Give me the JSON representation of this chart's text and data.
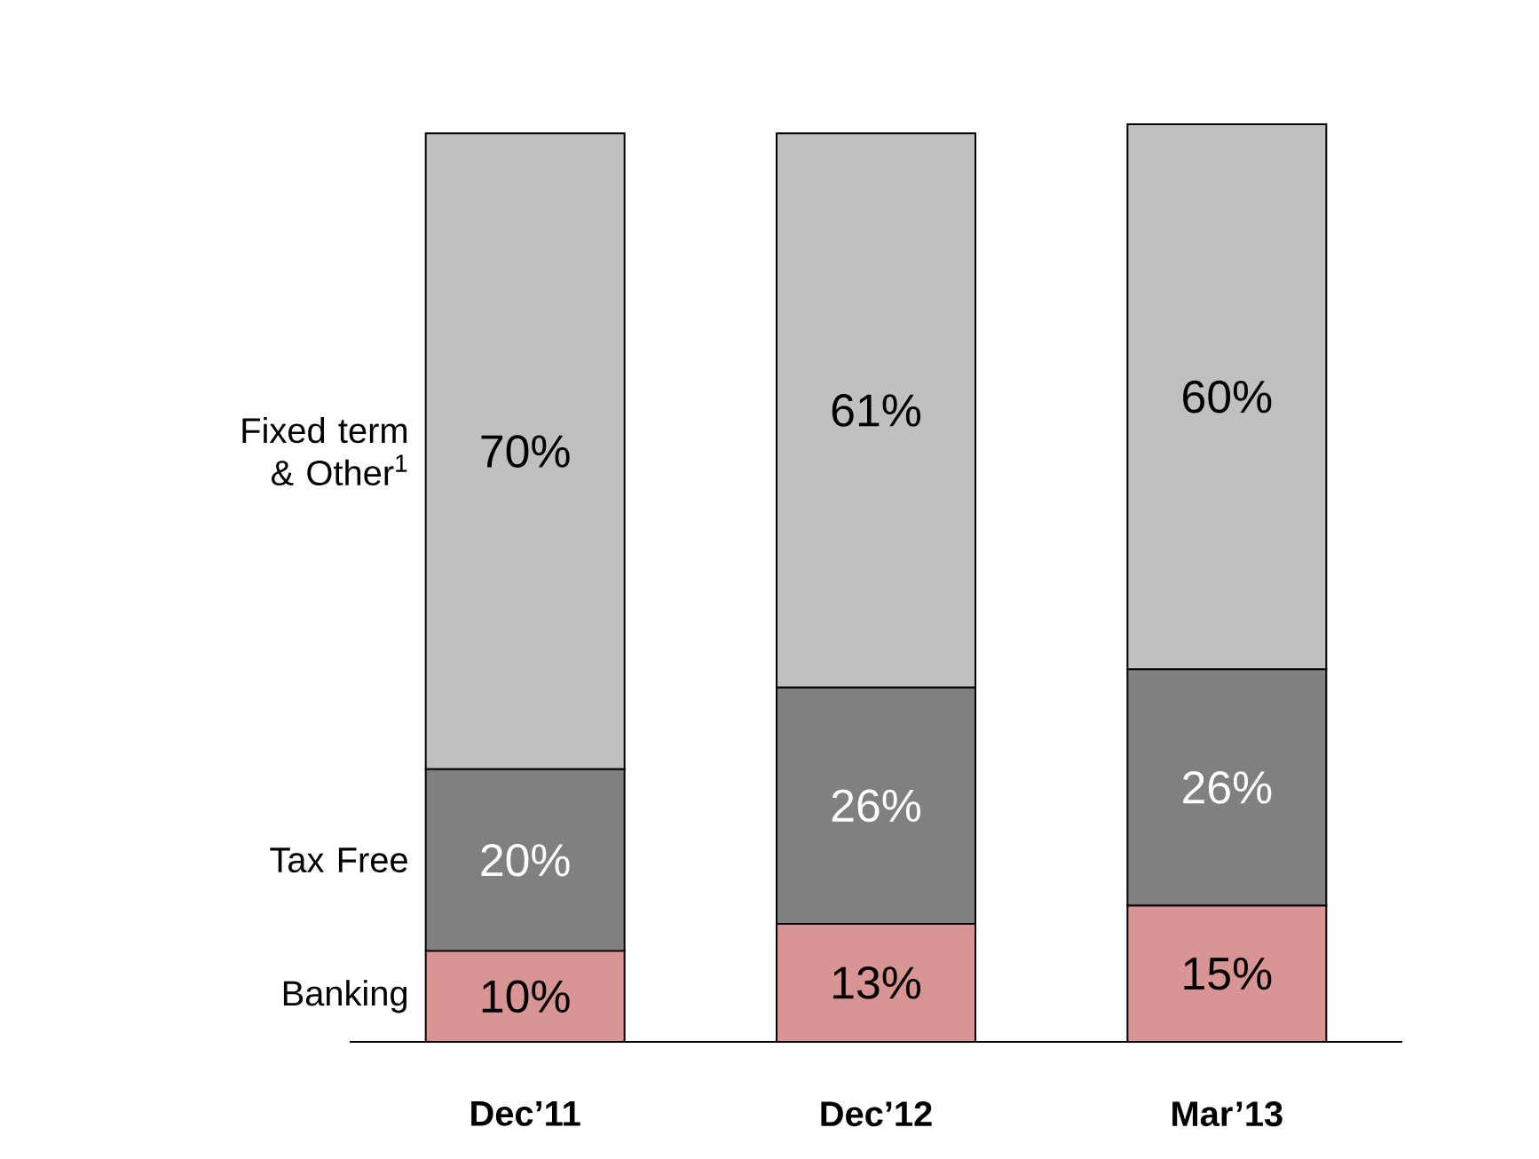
{
  "chart_data": {
    "type": "bar",
    "stacked": true,
    "categories": [
      "Dec’11",
      "Dec’12",
      "Mar’13"
    ],
    "series": [
      {
        "name": "Banking",
        "color": "#d99594",
        "values": [
          10,
          13,
          15
        ],
        "value_labels": [
          "10%",
          "13%",
          "15%"
        ]
      },
      {
        "name": "Tax Free",
        "color": "#808080",
        "values": [
          20,
          26,
          26
        ],
        "value_labels": [
          "20%",
          "26%",
          "26%"
        ]
      },
      {
        "name": "Fixed term & Other$^{1}$",
        "color": "#c0c0c0",
        "values": [
          70,
          61,
          60
        ],
        "value_labels": [
          "70%",
          "61%",
          "60%"
        ]
      }
    ]
  }
}
